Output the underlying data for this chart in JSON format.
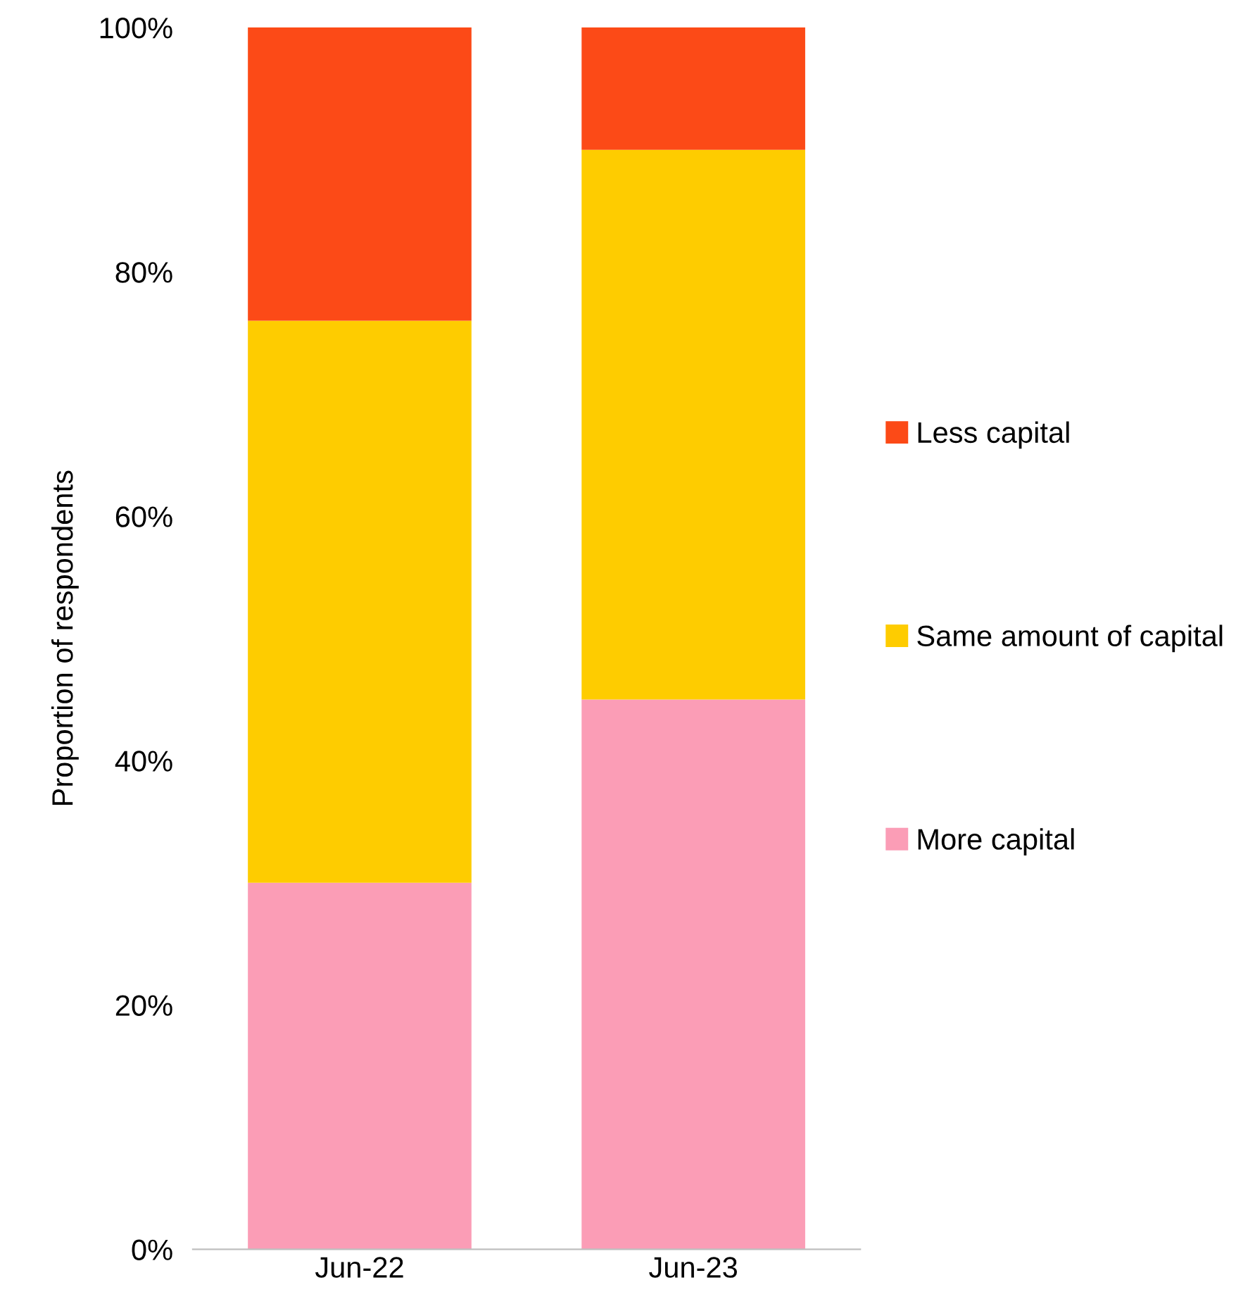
{
  "chart_data": {
    "type": "bar",
    "stacked": true,
    "ylabel": "Proportion of respondents",
    "categories": [
      "Jun-22",
      "Jun-23"
    ],
    "series": [
      {
        "name": "More capital",
        "color": "#fb9db6",
        "values": [
          30,
          45
        ]
      },
      {
        "name": "Same amount of capital",
        "color": "#fecc00",
        "values": [
          46,
          45
        ]
      },
      {
        "name": "Less capital",
        "color": "#fc4a17",
        "values": [
          24,
          10
        ]
      }
    ],
    "ylim": [
      0,
      100
    ],
    "yticks": [
      {
        "value": 0,
        "label": "0%"
      },
      {
        "value": 20,
        "label": "20%"
      },
      {
        "value": 40,
        "label": "40%"
      },
      {
        "value": 60,
        "label": "60%"
      },
      {
        "value": 80,
        "label": "80%"
      },
      {
        "value": 100,
        "label": "100%"
      }
    ],
    "grid": false,
    "legend": "right"
  }
}
